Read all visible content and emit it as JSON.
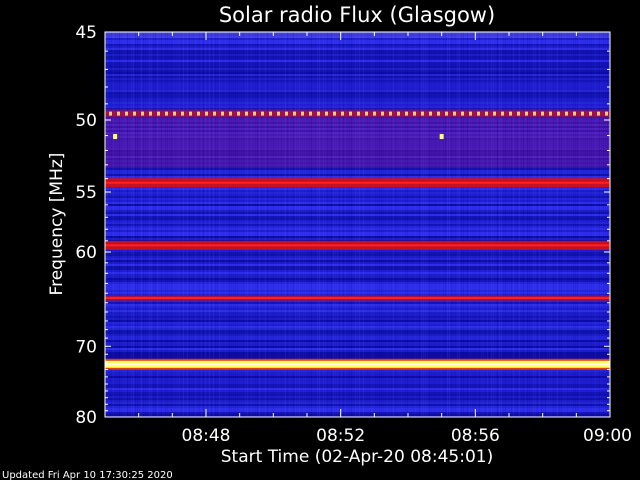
{
  "chart_data": {
    "type": "heatmap",
    "title": "Solar radio Flux (Glasgow)",
    "ylabel": "Frequency [MHz]",
    "xlabel": "Start Time (02-Apr-20 08:45:01)",
    "x_ticks": [
      "08:48",
      "08:52",
      "08:56",
      "09:00"
    ],
    "x_tick_values_min": [
      3,
      7,
      11,
      15
    ],
    "xlim_min": [
      0,
      15
    ],
    "y_ticks": [
      45,
      50,
      55,
      60,
      70,
      80
    ],
    "ylim_mhz": [
      45,
      80
    ],
    "y_scale": "reciprocal",
    "emission_bands_mhz": [
      {
        "freq": 49.6,
        "level": "dotted-bright"
      },
      {
        "freq": 54.3,
        "level": "strong"
      },
      {
        "freq": 59.4,
        "level": "strong"
      },
      {
        "freq": 64.5,
        "level": "moderate"
      },
      {
        "freq": 72.3,
        "level": "very-strong"
      }
    ],
    "bursts": [
      {
        "time_min": 0.3,
        "freq": 51.1
      },
      {
        "time_min": 10.0,
        "freq": 51.1
      }
    ],
    "colors": {
      "background": "#1e1ec8",
      "band_red": "#d81010",
      "band_yellow": "#ffff60"
    }
  },
  "footer": {
    "updated": "Updated Fri Apr 10 17:30:25 2020"
  }
}
